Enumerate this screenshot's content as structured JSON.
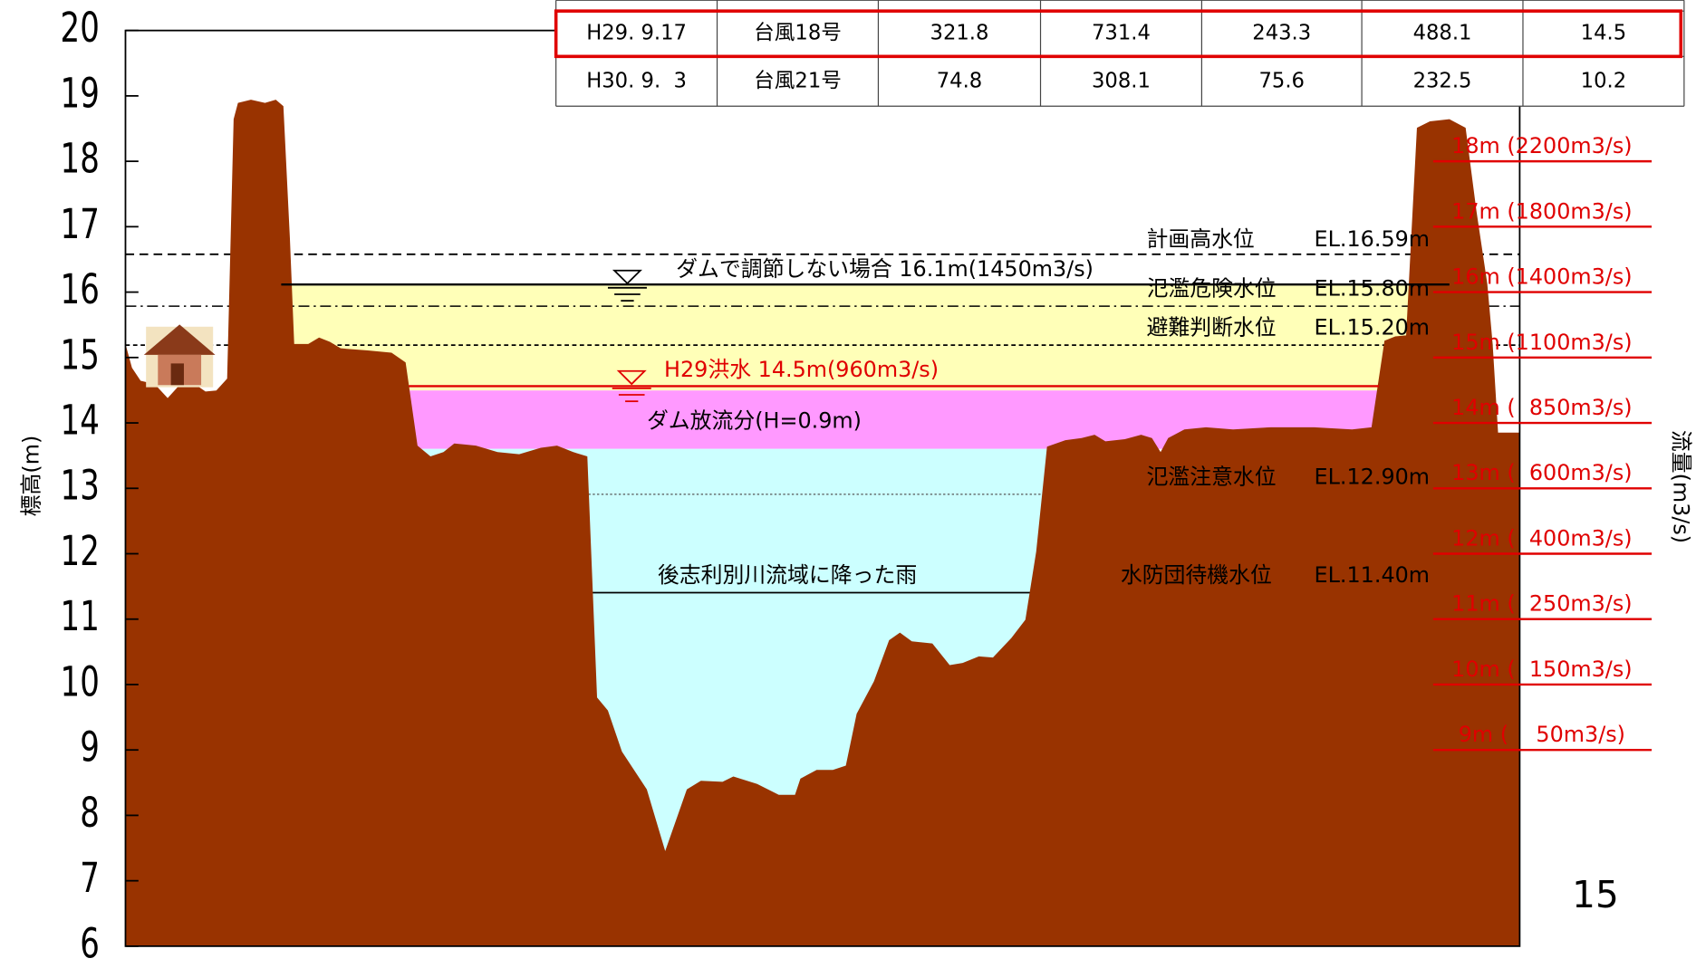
{
  "y_axis": {
    "label": "標高(m)",
    "range": [
      6,
      20
    ],
    "ticks": [
      20,
      19,
      18,
      17,
      16,
      15,
      14,
      13,
      12,
      11,
      10,
      9,
      8,
      7,
      6
    ]
  },
  "right_axis": {
    "label": "流量(m3/s)"
  },
  "table": {
    "rows": [
      [
        "H29. 9.17",
        "台風18号",
        321.8,
        731.4,
        243.3,
        488.1,
        14.5
      ],
      [
        "H30. 9.  3",
        "台風21号",
        74.8,
        308.1,
        75.6,
        232.5,
        10.2
      ]
    ]
  },
  "annotations": {
    "no_dam": "ダムで調節しない場合 16.1m(1450m3/s)",
    "h29": "H29洪水 14.5m(960m3/s)",
    "dam_release": "ダム放流分(H=0.9m)",
    "rain": "後志利別川流域に降った雨"
  },
  "levels": [
    {
      "name": "計画高水位",
      "value": "EL.16.59m"
    },
    {
      "name": "氾濫危険水位",
      "value": "EL.15.80m"
    },
    {
      "name": "避難判断水位",
      "value": "EL.15.20m"
    },
    {
      "name": "氾濫注意水位",
      "value": "EL.12.90m"
    },
    {
      "name": "水防団待機水位",
      "value": "EL.11.40m"
    }
  ],
  "discharge_levels": [
    "18m (2200m3/s)",
    "17m (1800m3/s)",
    "16m (1400m3/s)",
    "15m (1100m3/s)",
    "14m (  850m3/s)",
    "13m (  600m3/s)",
    "12m (  400m3/s)",
    "11m (  250m3/s)",
    "10m (  150m3/s)",
    " 9m (    50m3/s)"
  ],
  "page_number": "15"
}
